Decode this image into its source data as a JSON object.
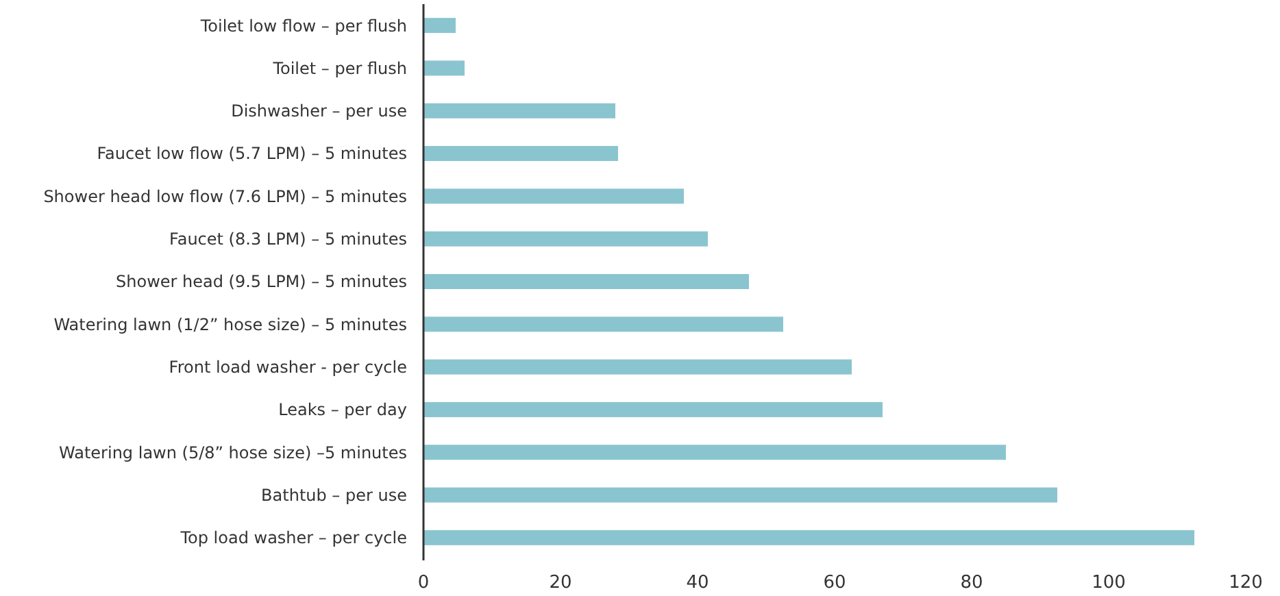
{
  "chart_data": {
    "type": "bar",
    "orientation": "horizontal",
    "categories": [
      "Toilet low flow – per flush",
      "Toilet – per flush",
      "Dishwasher – per use",
      "Faucet low flow (5.7 LPM) – 5 minutes",
      "Shower head low flow (7.6 LPM) – 5 minutes",
      "Faucet (8.3 LPM) – 5 minutes",
      "Shower head (9.5 LPM) – 5 minutes",
      "Watering lawn (1/2” hose size) – 5 minutes",
      "Front load washer - per cycle",
      "Leaks – per day",
      "Watering lawn (5/8” hose size) –5 minutes",
      "Bathtub – per use",
      "Top load washer – per cycle"
    ],
    "values": [
      4.7,
      6,
      28,
      28.4,
      38,
      41.5,
      47.5,
      52.5,
      62.5,
      67,
      85,
      92.5,
      112.5
    ],
    "color": "#8ac5cf",
    "xlim": [
      0,
      120
    ],
    "xticks": [
      0,
      20,
      40,
      60,
      80,
      100,
      120
    ],
    "grid": false
  }
}
